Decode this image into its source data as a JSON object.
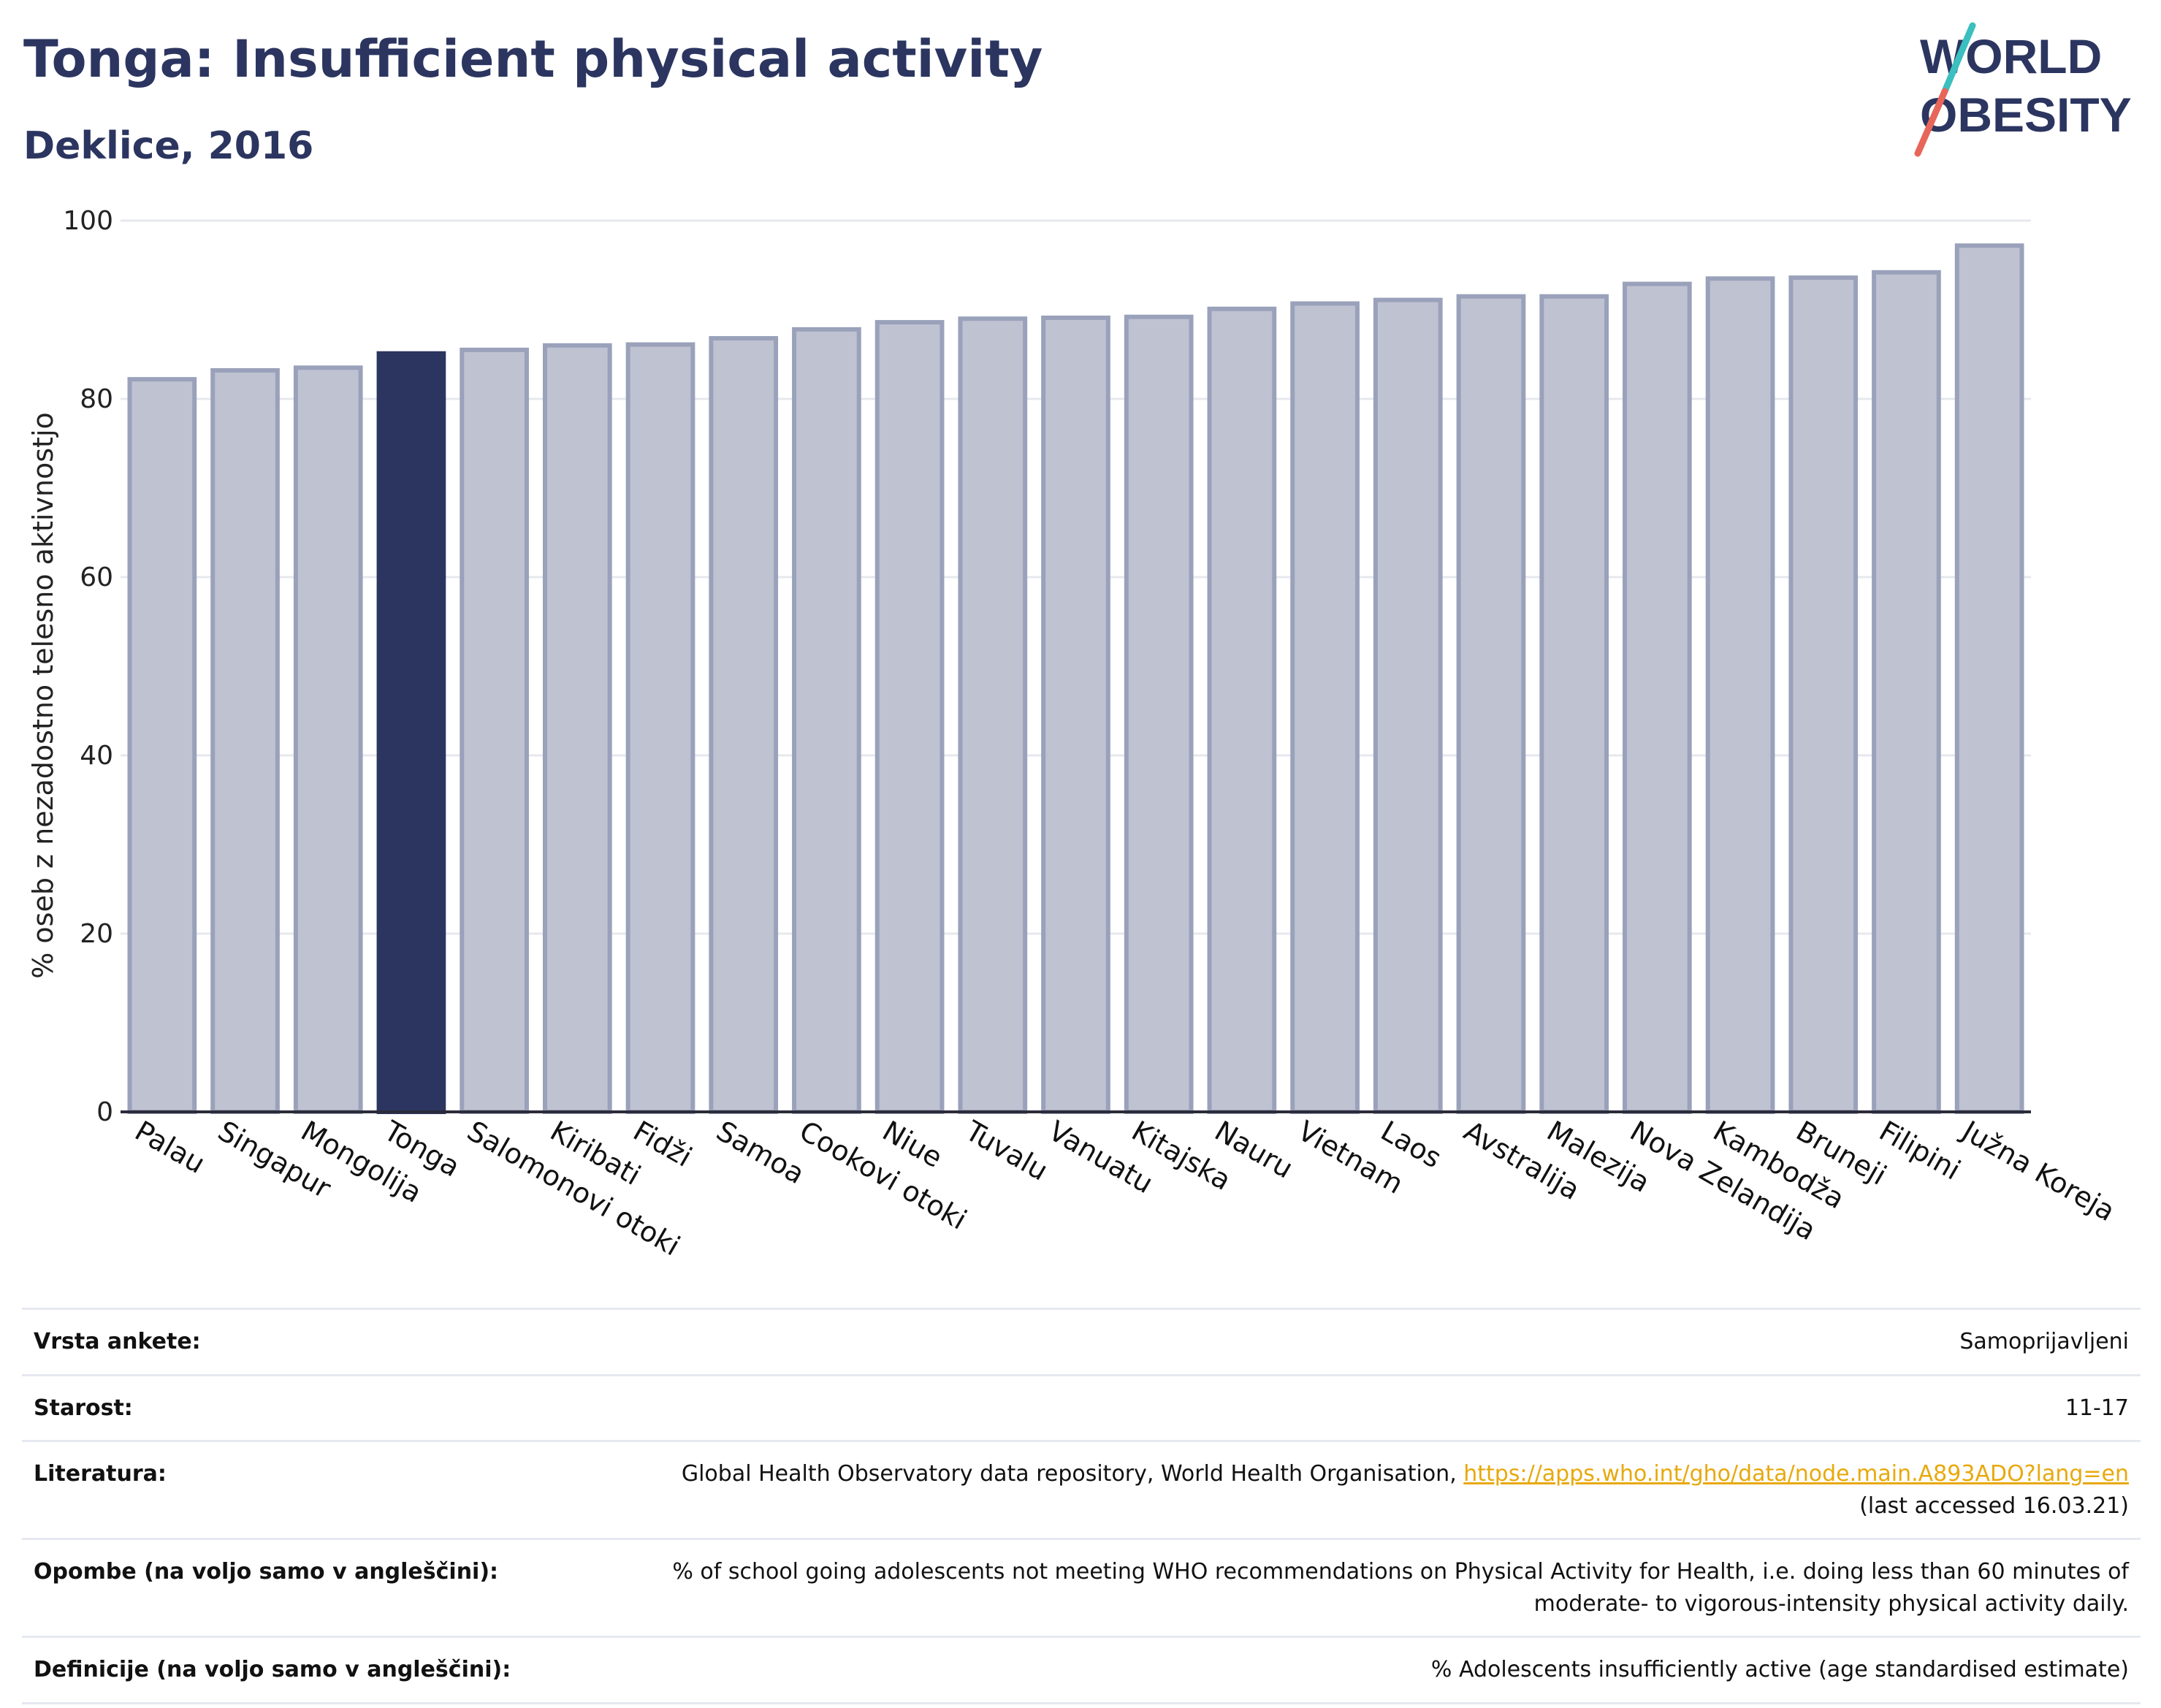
{
  "header": {
    "title": "Tonga: Insufficient physical activity",
    "subtitle": "Deklice, 2016"
  },
  "logo": {
    "line1": "WORLD",
    "line2": "OBESITY"
  },
  "colors": {
    "title": "#2b3560",
    "highlight_bar": "#2b3560",
    "bar_fill": "#bfc2d1",
    "bar_stroke": "#9aa1ba",
    "logo_teal": "#3bbfc0",
    "logo_coral": "#e8655a",
    "link": "#e8a90d"
  },
  "chart_data": {
    "type": "bar",
    "categories": [
      "Palau",
      "Singapur",
      "Mongolija",
      "Tonga",
      "Salomonovi otoki",
      "Kiribati",
      "Fidži",
      "Samoa",
      "Cookovi otoki",
      "Niue",
      "Tuvalu",
      "Vanuatu",
      "Kitajska",
      "Nauru",
      "Vietnam",
      "Laos",
      "Avstralija",
      "Malezija",
      "Nova Zelandija",
      "Kambodža",
      "Bruneji",
      "Filipini",
      "Južna Koreja"
    ],
    "values": [
      82.2,
      83.2,
      83.5,
      85.1,
      85.5,
      86.0,
      86.1,
      86.8,
      87.8,
      88.6,
      89.0,
      89.1,
      89.2,
      90.1,
      90.7,
      91.1,
      91.5,
      91.5,
      92.9,
      93.5,
      93.6,
      94.2,
      97.2
    ],
    "highlight": "Tonga",
    "ylabel": "% oseb z nezadostno telesno aktivnostjo",
    "ylim": [
      0,
      100
    ],
    "yticks": [
      0,
      20,
      40,
      60,
      80,
      100
    ],
    "grid": true
  },
  "meta": [
    {
      "label": "Vrsta ankete:",
      "value": "Samoprijavljeni"
    },
    {
      "label": "Starost:",
      "value": "11-17"
    },
    {
      "label": "Literatura:",
      "value": "Global Health Observatory data repository, World Health Organisation, ",
      "link": "https://apps.who.int/gho/data/node.main.A893ADO?lang=en",
      "value2": "(last accessed 16.03.21)"
    },
    {
      "label": "Opombe (na voljo samo v angleščini):",
      "value": "% of school going adolescents not meeting WHO recommendations on Physical Activity for Health, i.e. doing less than 60 minutes of",
      "value2": "moderate- to vigorous-intensity physical activity daily."
    },
    {
      "label": "Definicije (na voljo samo v angleščini):",
      "value": "% Adolescents insufficiently active (age standardised estimate)"
    }
  ]
}
